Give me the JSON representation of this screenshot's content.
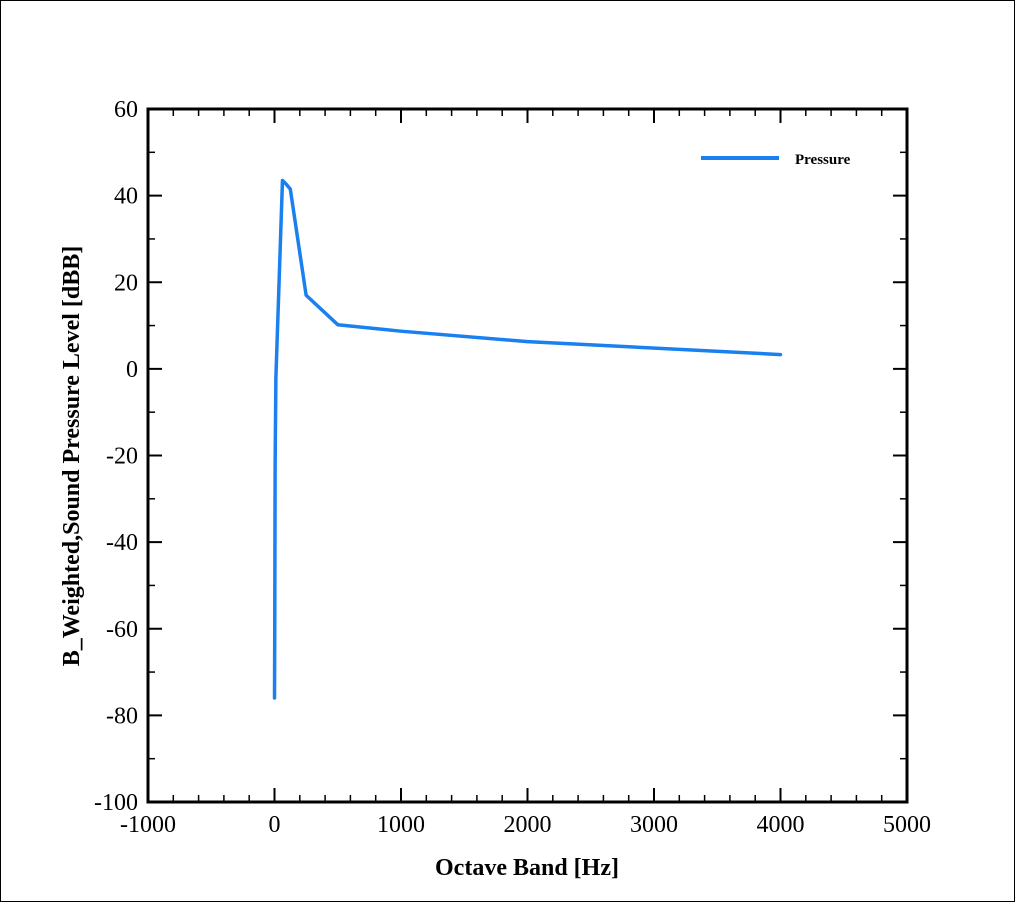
{
  "chart_data": {
    "type": "line",
    "xlabel": "Octave Band [Hz]",
    "ylabel": "B_Weighted,Sound Pressure Level [dBB]",
    "xlim": [
      -1000,
      5000
    ],
    "ylim": [
      -100,
      60
    ],
    "x_major_ticks": [
      -1000,
      0,
      1000,
      2000,
      3000,
      4000,
      5000
    ],
    "y_major_ticks": [
      -100,
      -80,
      -60,
      -40,
      -20,
      0,
      20,
      40,
      60
    ],
    "x_minor_step": 200,
    "y_minor_step": 10,
    "grid": false,
    "legend_position": "top-right",
    "series": [
      {
        "name": "Pressure",
        "color": "#1a80f0",
        "x": [
          0,
          2,
          5,
          11,
          63,
          88,
          125,
          250,
          500,
          1000,
          2000,
          4000
        ],
        "y": [
          -76,
          -60,
          -22,
          -2,
          43.5,
          42.8,
          41.5,
          17,
          10.2,
          8.7,
          6.3,
          3.3
        ]
      }
    ]
  }
}
